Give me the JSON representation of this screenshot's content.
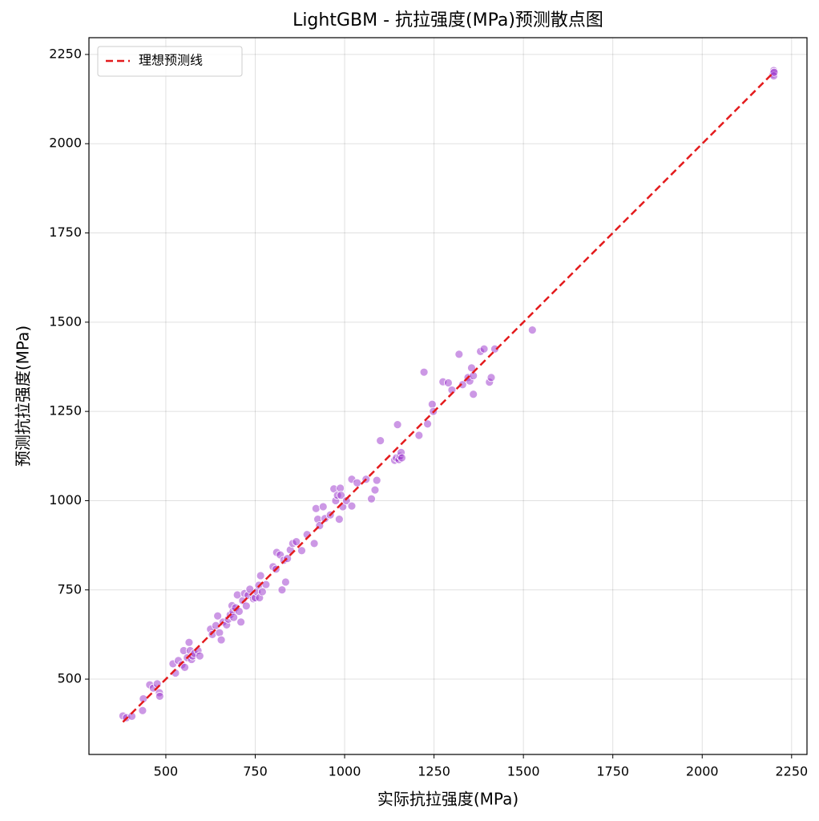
{
  "chart_data": {
    "type": "scatter",
    "title": "LightGBM - 抗拉强度(MPa)预测散点图",
    "x_label": "实际抗拉强度(MPa)",
    "y_label": "预测抗拉强度(MPa)",
    "xlim": [
      285,
      2293
    ],
    "ylim": [
      289,
      2297
    ],
    "xticks": [
      500,
      750,
      1000,
      1250,
      1500,
      1750,
      2000,
      2250
    ],
    "yticks": [
      500,
      750,
      1000,
      1250,
      1500,
      1750,
      2000,
      2250
    ],
    "grid": true,
    "legend": "upper-left",
    "points": {
      "color": "#9932cc",
      "x": [
        380,
        390,
        405,
        435,
        437,
        455,
        465,
        476,
        482,
        483,
        520,
        527,
        535,
        545,
        550,
        553,
        560,
        565,
        568,
        572,
        575,
        580,
        590,
        595,
        625,
        630,
        640,
        645,
        650,
        655,
        660,
        670,
        675,
        680,
        685,
        688,
        690,
        695,
        700,
        705,
        710,
        715,
        720,
        725,
        730,
        735,
        745,
        750,
        755,
        760,
        762,
        765,
        770,
        780,
        800,
        808,
        810,
        820,
        825,
        830,
        835,
        840,
        848,
        855,
        865,
        880,
        895,
        915,
        920,
        925,
        930,
        940,
        945,
        960,
        970,
        975,
        980,
        985,
        988,
        990,
        995,
        1005,
        1020,
        1020,
        1035,
        1060,
        1075,
        1085,
        1090,
        1100,
        1140,
        1145,
        1148,
        1152,
        1155,
        1158,
        1160,
        1208,
        1222,
        1232,
        1245,
        1248,
        1275,
        1290,
        1300,
        1320,
        1330,
        1345,
        1350,
        1355,
        1360,
        1360,
        1380,
        1390,
        1405,
        1410,
        1420,
        1525,
        2198,
        2200,
        2200,
        2201
      ],
      "y": [
        397,
        392,
        396,
        412,
        445,
        484,
        475,
        487,
        462,
        452,
        543,
        517,
        552,
        540,
        580,
        533,
        560,
        603,
        580,
        555,
        565,
        572,
        580,
        565,
        640,
        625,
        650,
        677,
        630,
        610,
        660,
        652,
        668,
        680,
        706,
        690,
        673,
        700,
        736,
        690,
        660,
        720,
        740,
        705,
        735,
        752,
        725,
        728,
        745,
        763,
        728,
        790,
        745,
        765,
        815,
        808,
        855,
        848,
        750,
        833,
        772,
        838,
        862,
        880,
        885,
        860,
        905,
        880,
        978,
        948,
        930,
        983,
        950,
        960,
        1033,
        1000,
        1015,
        948,
        1035,
        1015,
        983,
        1000,
        1060,
        985,
        1050,
        1060,
        1005,
        1030,
        1057,
        1168,
        1113,
        1120,
        1213,
        1115,
        1125,
        1135,
        1120,
        1183,
        1360,
        1215,
        1270,
        1250,
        1333,
        1330,
        1310,
        1410,
        1325,
        1345,
        1335,
        1372,
        1298,
        1350,
        1418,
        1425,
        1332,
        1345,
        1425,
        1478,
        2195,
        2205,
        2190,
        2200
      ]
    },
    "reference_line": {
      "name": "理想预测线",
      "color": "#e31a1c",
      "x": [
        380,
        2200
      ],
      "y": [
        380,
        2200
      ]
    }
  }
}
